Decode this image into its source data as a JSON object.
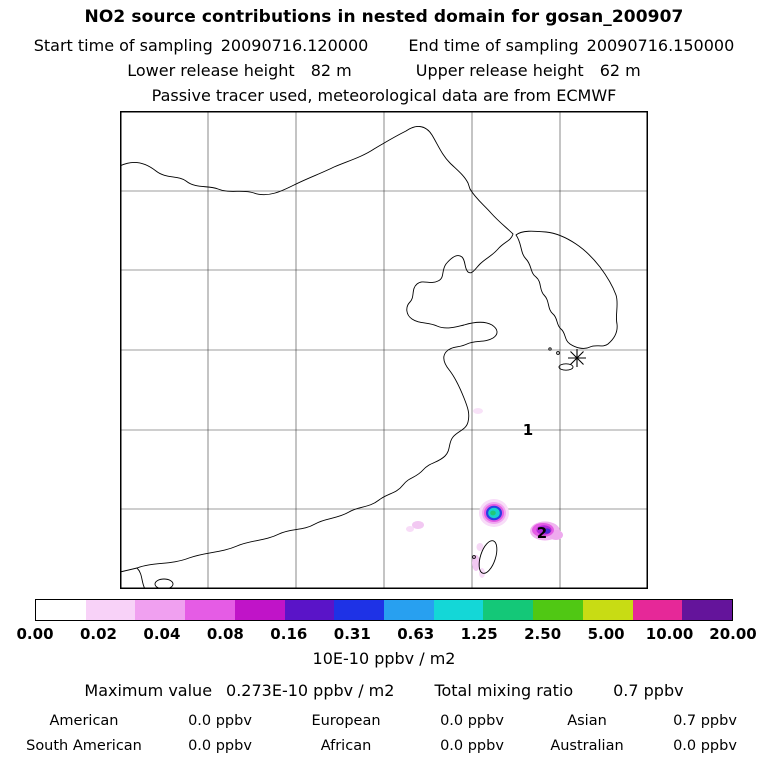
{
  "header": {
    "title": "NO2 source contributions in nested domain for gosan_200907",
    "start_time_label": "Start time of sampling",
    "start_time_value": "20090716.120000",
    "end_time_label": "End time of sampling",
    "end_time_value": "20090716.150000",
    "lower_release_label": "Lower release height",
    "lower_release_value": "82 m",
    "upper_release_label": "Upper release height",
    "upper_release_value": "62 m",
    "tracer_line": "Passive tracer used, meteorological data are from ECMWF"
  },
  "map": {
    "cluster_labels": [
      "1",
      "2"
    ],
    "station_marker": "asterisk-icon"
  },
  "colorbar": {
    "colors": [
      "#ffffff",
      "#f8d2f8",
      "#f0a0f0",
      "#e55ce5",
      "#c014c8",
      "#5a14c8",
      "#1e32e6",
      "#28a0f0",
      "#14d7d7",
      "#14c878",
      "#50c814",
      "#c8dc14",
      "#e62898",
      "#64149b"
    ],
    "tick_labels": [
      "0.00",
      "0.02",
      "0.04",
      "0.08",
      "0.16",
      "0.31",
      "0.63",
      "1.25",
      "2.50",
      "5.00",
      "10.00",
      "20.00"
    ],
    "unit_label": "10E-10 ppbv / m2"
  },
  "stats": {
    "maximum_label": "Maximum value",
    "maximum_value": "0.273E-10 ppbv / m2",
    "total_label": "Total mixing ratio",
    "total_value": "0.7 ppbv",
    "regions": [
      {
        "label": "American",
        "value": "0.0 ppbv"
      },
      {
        "label": "European",
        "value": "0.0 ppbv"
      },
      {
        "label": "Asian",
        "value": "0.7 ppbv"
      },
      {
        "label": "South American",
        "value": "0.0 ppbv"
      },
      {
        "label": "African",
        "value": "0.0 ppbv"
      },
      {
        "label": "Australian",
        "value": "0.0 ppbv"
      }
    ]
  },
  "chart_data": {
    "type": "heatmap",
    "title": "NO2 source contributions in nested domain for gosan_200907",
    "subtitle_lines": [
      "Start time of sampling 20090716.120000   End time of sampling 20090716.150000",
      "Lower release height 82 m   Upper release height 62 m",
      "Passive tracer used, meteorological data are from ECMWF"
    ],
    "map": "East Asia coastline map (China, Korea, Taiwan) with unlabeled 6x6 graticule grid",
    "colorbar_levels": [
      0.0,
      0.02,
      0.04,
      0.08,
      0.16,
      0.31,
      0.63,
      1.25,
      2.5,
      5.0,
      10.0,
      20.0
    ],
    "colorbar_scale": "logarithmic, discrete color bands white to dark purple",
    "unit": "10E-10 ppbv / m2",
    "maximum_value": "0.273E-10 ppbv / m2",
    "total_mixing_ratio": "0.7 ppbv",
    "region_contributions_ppbv": {
      "American": 0.0,
      "European": 0.0,
      "Asian": 0.7,
      "South American": 0.0,
      "African": 0.0,
      "Australian": 0.0
    },
    "annotations": [
      {
        "label": "*",
        "meaning": "receptor station marker (gosan), near Jeju / south of Korea"
      },
      {
        "label": "1",
        "meaning": "cluster label offshore in East China Sea, no strong plume"
      },
      {
        "label": "2",
        "meaning": "cluster label on magenta plume patch east of Taiwan"
      }
    ],
    "hotspots": [
      {
        "location": "just north of Taiwan",
        "peak_band": "0.16-0.31",
        "appearance": "small round plume: magenta halo, blue ring, cyan-green core"
      },
      {
        "location": "east of Taiwan (cluster 2)",
        "peak_band": "0.04-0.16",
        "appearance": "magenta patch with darker purple-blue core"
      },
      {
        "location": "scattered faint traces along SE China coast and SE of Taiwan",
        "peak_band": "0.00-0.04",
        "appearance": "pale violet smudges"
      }
    ]
  }
}
